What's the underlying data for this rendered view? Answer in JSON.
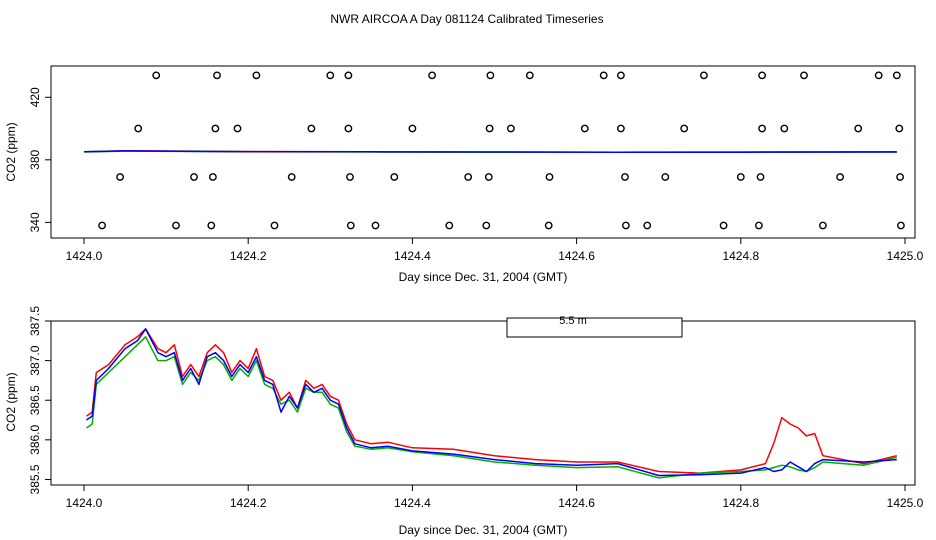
{
  "page_title": "NWR AIRCOA A  Day 081124  Calibrated Timeseries",
  "chart_data": [
    {
      "type": "scatter",
      "xlabel": "Day since Dec. 31, 2004 (GMT)",
      "ylabel": "CO2 (ppm)",
      "xlim": [
        1424.0,
        1425.0
      ],
      "ylim": [
        330,
        440
      ],
      "x_ticks": [
        1424.0,
        1424.2,
        1424.4,
        1424.6,
        1424.8,
        1425.0
      ],
      "x_tick_labels": [
        "1424.0",
        "1424.2",
        "1424.4",
        "1424.6",
        "1424.8",
        "1425.0"
      ],
      "y_ticks": [
        340,
        380,
        420
      ],
      "y_tick_labels": [
        "340",
        "380",
        "420"
      ],
      "points": [
        [
          1424.088,
          434
        ],
        [
          1424.162,
          434
        ],
        [
          1424.21,
          434
        ],
        [
          1424.3,
          434
        ],
        [
          1424.322,
          434
        ],
        [
          1424.424,
          434
        ],
        [
          1424.495,
          434
        ],
        [
          1424.543,
          434
        ],
        [
          1424.633,
          434
        ],
        [
          1424.654,
          434
        ],
        [
          1424.755,
          434
        ],
        [
          1424.826,
          434
        ],
        [
          1424.877,
          434
        ],
        [
          1424.968,
          434
        ],
        [
          1424.99,
          434
        ],
        [
          1424.066,
          400
        ],
        [
          1424.16,
          400
        ],
        [
          1424.187,
          400
        ],
        [
          1424.277,
          400
        ],
        [
          1424.322,
          400
        ],
        [
          1424.4,
          400
        ],
        [
          1424.494,
          400
        ],
        [
          1424.52,
          400
        ],
        [
          1424.61,
          400
        ],
        [
          1424.654,
          400
        ],
        [
          1424.731,
          400
        ],
        [
          1424.826,
          400
        ],
        [
          1424.853,
          400
        ],
        [
          1424.943,
          400
        ],
        [
          1424.993,
          400
        ],
        [
          1424.044,
          369
        ],
        [
          1424.134,
          369
        ],
        [
          1424.157,
          369
        ],
        [
          1424.253,
          369
        ],
        [
          1424.324,
          369
        ],
        [
          1424.378,
          369
        ],
        [
          1424.468,
          369
        ],
        [
          1424.493,
          369
        ],
        [
          1424.567,
          369
        ],
        [
          1424.659,
          369
        ],
        [
          1424.708,
          369
        ],
        [
          1424.8,
          369
        ],
        [
          1424.824,
          369
        ],
        [
          1424.921,
          369
        ],
        [
          1424.994,
          369
        ],
        [
          1424.022,
          338
        ],
        [
          1424.112,
          338
        ],
        [
          1424.155,
          338
        ],
        [
          1424.232,
          338
        ],
        [
          1424.325,
          338
        ],
        [
          1424.355,
          338
        ],
        [
          1424.445,
          338
        ],
        [
          1424.49,
          338
        ],
        [
          1424.566,
          338
        ],
        [
          1424.66,
          338
        ],
        [
          1424.686,
          338
        ],
        [
          1424.779,
          338
        ],
        [
          1424.822,
          338
        ],
        [
          1424.9,
          338
        ],
        [
          1424.995,
          338
        ]
      ],
      "series": [
        {
          "color": "#ff0000",
          "x": [
            1424.0,
            1424.05,
            1424.2,
            1424.35,
            1424.5,
            1424.65,
            1424.8,
            1424.99
          ],
          "values": [
            385.2,
            385.8,
            385.3,
            385.1,
            385.0,
            384.9,
            385.0,
            385.1
          ]
        },
        {
          "color": "#00b000",
          "x": [
            1424.0,
            1424.05,
            1424.2,
            1424.35,
            1424.5,
            1424.65,
            1424.8,
            1424.99
          ],
          "values": [
            385.0,
            385.6,
            385.2,
            385.0,
            384.9,
            384.8,
            384.9,
            385.0
          ]
        },
        {
          "color": "#0000ff",
          "x": [
            1424.0,
            1424.05,
            1424.2,
            1424.35,
            1424.5,
            1424.65,
            1424.8,
            1424.99
          ],
          "values": [
            385.1,
            385.7,
            385.2,
            385.1,
            385.0,
            384.9,
            384.9,
            385.0
          ]
        }
      ]
    },
    {
      "type": "line",
      "xlabel": "Day since Dec. 31, 2004 (GMT)",
      "ylabel": "CO2 (ppm)",
      "xlim": [
        1424.0,
        1425.0
      ],
      "ylim": [
        385.43,
        387.5
      ],
      "x_ticks": [
        1424.0,
        1424.2,
        1424.4,
        1424.6,
        1424.8,
        1425.0
      ],
      "x_tick_labels": [
        "1424.0",
        "1424.2",
        "1424.4",
        "1424.6",
        "1424.8",
        "1425.0"
      ],
      "y_ticks": [
        385.5,
        386.0,
        386.5,
        387.0,
        387.5
      ],
      "y_tick_labels": [
        "385.5",
        "386.0",
        "386.5",
        "387.0",
        "387.5"
      ],
      "legend": {
        "entries": [
          "5.5 m"
        ],
        "placement": "top-center"
      },
      "series": [
        {
          "color": "#ff0000",
          "x": [
            1424.003,
            1424.01,
            1424.015,
            1424.03,
            1424.05,
            1424.065,
            1424.075,
            1424.09,
            1424.1,
            1424.11,
            1424.12,
            1424.13,
            1424.14,
            1424.15,
            1424.16,
            1424.17,
            1424.18,
            1424.19,
            1424.2,
            1424.21,
            1424.22,
            1424.23,
            1424.24,
            1424.25,
            1424.26,
            1424.27,
            1424.28,
            1424.29,
            1424.3,
            1424.31,
            1424.32,
            1424.33,
            1424.35,
            1424.37,
            1424.4,
            1424.45,
            1424.5,
            1424.55,
            1424.6,
            1424.65,
            1424.7,
            1424.75,
            1424.8,
            1424.83,
            1424.84,
            1424.85,
            1424.86,
            1424.87,
            1424.88,
            1424.89,
            1424.9,
            1424.95,
            1424.99
          ],
          "values": [
            386.3,
            386.35,
            386.85,
            386.95,
            387.2,
            387.3,
            387.4,
            387.15,
            387.1,
            387.2,
            386.8,
            386.95,
            386.8,
            387.1,
            387.2,
            387.1,
            386.85,
            387.0,
            386.9,
            387.15,
            386.8,
            386.75,
            386.5,
            386.6,
            386.4,
            386.75,
            386.65,
            386.7,
            386.55,
            386.5,
            386.2,
            386.0,
            385.95,
            385.97,
            385.9,
            385.88,
            385.8,
            385.75,
            385.72,
            385.72,
            385.6,
            385.58,
            385.62,
            385.7,
            385.95,
            386.28,
            386.2,
            386.15,
            386.05,
            386.08,
            385.8,
            385.7,
            385.8
          ]
        },
        {
          "color": "#00b000",
          "x": [
            1424.003,
            1424.01,
            1424.015,
            1424.03,
            1424.05,
            1424.065,
            1424.075,
            1424.09,
            1424.1,
            1424.11,
            1424.12,
            1424.13,
            1424.14,
            1424.15,
            1424.16,
            1424.17,
            1424.18,
            1424.19,
            1424.2,
            1424.21,
            1424.22,
            1424.23,
            1424.24,
            1424.25,
            1424.26,
            1424.27,
            1424.28,
            1424.29,
            1424.3,
            1424.31,
            1424.32,
            1424.33,
            1424.35,
            1424.37,
            1424.4,
            1424.45,
            1424.5,
            1424.55,
            1424.6,
            1424.65,
            1424.7,
            1424.75,
            1424.8,
            1424.83,
            1424.84,
            1424.85,
            1424.86,
            1424.87,
            1424.88,
            1424.89,
            1424.9,
            1424.95,
            1424.99
          ],
          "values": [
            386.15,
            386.2,
            386.7,
            386.85,
            387.05,
            387.2,
            387.3,
            387.0,
            387.0,
            387.05,
            386.7,
            386.85,
            386.75,
            387.0,
            387.05,
            386.95,
            386.75,
            386.9,
            386.8,
            387.0,
            386.7,
            386.65,
            386.45,
            386.5,
            386.35,
            386.65,
            386.6,
            386.6,
            386.45,
            386.4,
            386.1,
            385.92,
            385.88,
            385.9,
            385.85,
            385.8,
            385.72,
            385.68,
            385.65,
            385.66,
            385.52,
            385.58,
            385.6,
            385.62,
            385.65,
            385.68,
            385.66,
            385.62,
            385.6,
            385.65,
            385.72,
            385.68,
            385.78
          ]
        },
        {
          "color": "#0000ff",
          "x": [
            1424.003,
            1424.01,
            1424.015,
            1424.03,
            1424.05,
            1424.065,
            1424.075,
            1424.09,
            1424.1,
            1424.11,
            1424.12,
            1424.13,
            1424.14,
            1424.15,
            1424.16,
            1424.17,
            1424.18,
            1424.19,
            1424.2,
            1424.21,
            1424.22,
            1424.23,
            1424.24,
            1424.25,
            1424.26,
            1424.27,
            1424.28,
            1424.29,
            1424.3,
            1424.31,
            1424.32,
            1424.33,
            1424.35,
            1424.37,
            1424.4,
            1424.45,
            1424.5,
            1424.55,
            1424.6,
            1424.65,
            1424.7,
            1424.75,
            1424.8,
            1424.83,
            1424.84,
            1424.85,
            1424.86,
            1424.87,
            1424.88,
            1424.89,
            1424.9,
            1424.95,
            1424.99
          ],
          "values": [
            386.25,
            386.3,
            386.75,
            386.9,
            387.15,
            387.25,
            387.4,
            387.1,
            387.05,
            387.1,
            386.75,
            386.9,
            386.7,
            387.05,
            387.1,
            387.0,
            386.8,
            386.95,
            386.85,
            387.05,
            386.75,
            386.7,
            386.35,
            386.55,
            386.4,
            386.7,
            386.6,
            386.65,
            386.5,
            386.45,
            386.15,
            385.95,
            385.9,
            385.92,
            385.86,
            385.82,
            385.75,
            385.7,
            385.68,
            385.7,
            385.55,
            385.56,
            385.58,
            385.65,
            385.6,
            385.62,
            385.72,
            385.66,
            385.6,
            385.7,
            385.75,
            385.72,
            385.75
          ]
        }
      ]
    }
  ]
}
